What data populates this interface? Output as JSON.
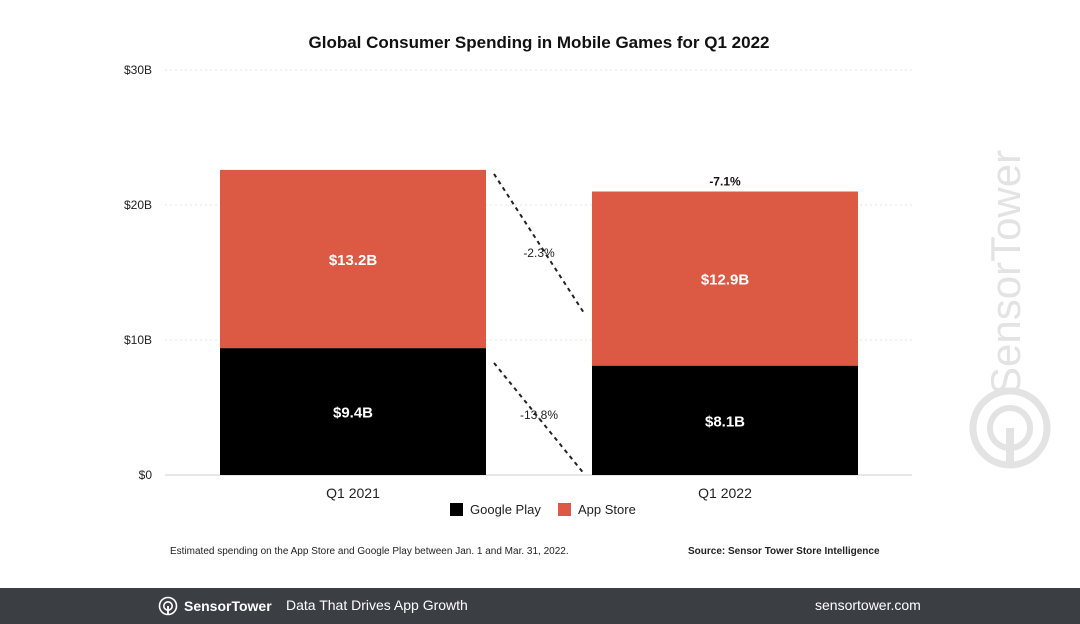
{
  "chart_data": {
    "type": "bar",
    "stacked": true,
    "title": "Global Consumer Spending in Mobile Games for Q1 2022",
    "categories": [
      "Q1 2021",
      "Q1 2022"
    ],
    "series": [
      {
        "name": "Google Play",
        "values": [
          9.4,
          8.1
        ],
        "labels": [
          "$9.4B",
          "$8.1B"
        ],
        "color": "#000000"
      },
      {
        "name": "App Store",
        "values": [
          13.2,
          12.9
        ],
        "labels": [
          "$13.2B",
          "$12.9B"
        ],
        "color": "#dc5a43"
      }
    ],
    "ylim": [
      0,
      30
    ],
    "yticks": [
      {
        "value": 0,
        "label": "$0"
      },
      {
        "value": 10,
        "label": "$10B"
      },
      {
        "value": 20,
        "label": "$20B"
      },
      {
        "value": 30,
        "label": "$30B"
      }
    ],
    "xlabel": "",
    "ylabel": "",
    "grid": true,
    "legend_position": "bottom-center",
    "annotations": {
      "total_change": "-7.1%",
      "app_store_change": "-2.3%",
      "google_play_change": "-13.8%"
    }
  },
  "footnote": {
    "left": "Estimated spending on the App Store and Google Play between Jan. 1 and Mar. 31, 2022.",
    "right": "Source: Sensor Tower Store Intelligence"
  },
  "watermark_text": "SensorTower",
  "footer": {
    "brand": "SensorTower",
    "tagline": "Data That Drives App Growth",
    "url": "sensortower.com",
    "background": "#3b3f44"
  }
}
